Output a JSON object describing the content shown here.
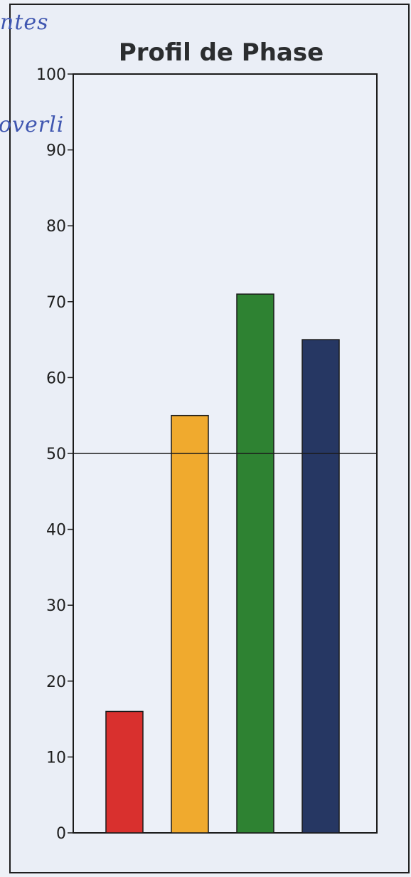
{
  "chart_data": {
    "type": "bar",
    "title": "Profil de Phase",
    "xlabel": "",
    "ylabel": "",
    "categories": [
      "",
      "",
      "",
      ""
    ],
    "values": [
      16,
      55,
      71,
      65
    ],
    "colors": [
      "#d9302e",
      "#f0aa2e",
      "#2e8232",
      "#263763"
    ],
    "ylim": [
      0,
      100
    ],
    "yticks": [
      0,
      10,
      20,
      30,
      40,
      50,
      60,
      70,
      80,
      90,
      100
    ],
    "reference_line": 50,
    "grid": false,
    "legend": "none"
  },
  "handwriting": [
    "ntes",
    "overli"
  ]
}
